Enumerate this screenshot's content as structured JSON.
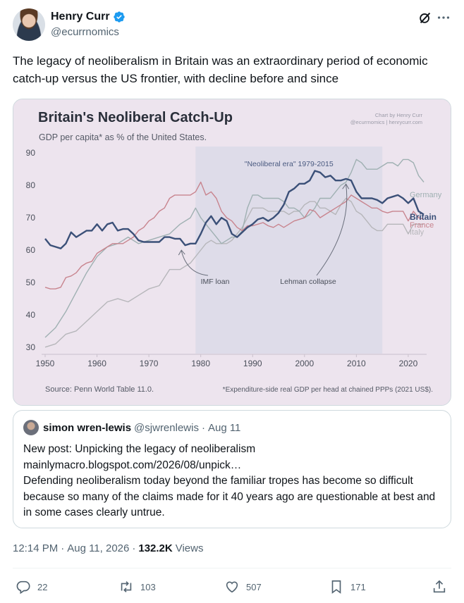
{
  "author": {
    "display_name": "Henry Curr",
    "handle": "@ecurrnomics"
  },
  "icons": {
    "verified": "verified-badge-icon",
    "grok": "grok-icon",
    "more": "more-icon",
    "reply": "reply-icon",
    "retweet": "retweet-icon",
    "like": "like-icon",
    "bookmark": "bookmark-icon",
    "share": "share-icon"
  },
  "colors": {
    "verified": "#1d9bf0",
    "britain": "#3b5078",
    "france": "#c8848e",
    "italy": "#b6b6ba",
    "germany": "#9fb0b2",
    "era_shade": "#dadbe8",
    "chart_bg": "#ede4ee"
  },
  "tweet": {
    "text": "The legacy of neoliberalism in Britain was an extraordinary period of economic catch-up versus the US frontier, with decline before and since"
  },
  "chart_data": {
    "type": "line",
    "title": "Britain's Neoliberal Catch-Up",
    "subtitle": "GDP per capita* as % of the United States.",
    "credit_line1": "Chart by Henry Curr",
    "credit_line2": "@ecurrnomics  |  henrycurr.com",
    "source": "Source: Penn World Table 11.0.",
    "footnote": "*Expenditure-side real GDP per head at chained PPPs (2021 US$).",
    "xlabel": "",
    "ylabel": "",
    "xlim": [
      1950,
      2023
    ],
    "ylim": [
      28,
      92
    ],
    "x_ticks": [
      1950,
      1960,
      1970,
      1980,
      1990,
      2000,
      2010,
      2020
    ],
    "y_ticks": [
      30,
      40,
      50,
      60,
      70,
      80,
      90
    ],
    "grid": false,
    "shaded_region": {
      "label": "\"Neoliberal era\" 1979-2015",
      "start": 1979,
      "end": 2015
    },
    "annotations": [
      {
        "text": "IMF loan",
        "x": 1976,
        "y": 61.5
      },
      {
        "text": "Lehman collapse",
        "x": 2008,
        "y": 81.5
      }
    ],
    "series": [
      {
        "name": "Germany",
        "data": [
          [
            1950,
            33
          ],
          [
            1952,
            36
          ],
          [
            1954,
            41
          ],
          [
            1956,
            47
          ],
          [
            1958,
            53
          ],
          [
            1960,
            58
          ],
          [
            1962,
            61
          ],
          [
            1964,
            62
          ],
          [
            1966,
            64
          ],
          [
            1968,
            62
          ],
          [
            1970,
            63
          ],
          [
            1972,
            64
          ],
          [
            1974,
            65
          ],
          [
            1976,
            68
          ],
          [
            1978,
            70
          ],
          [
            1979,
            73
          ],
          [
            1980,
            70
          ],
          [
            1981,
            68
          ],
          [
            1982,
            66
          ],
          [
            1983,
            64
          ],
          [
            1984,
            62
          ],
          [
            1985,
            63
          ],
          [
            1986,
            64
          ],
          [
            1987,
            64
          ],
          [
            1988,
            66
          ],
          [
            1989,
            73
          ],
          [
            1990,
            77
          ],
          [
            1991,
            77
          ],
          [
            1992,
            76
          ],
          [
            1993,
            76
          ],
          [
            1994,
            76
          ],
          [
            1995,
            76
          ],
          [
            1996,
            75
          ],
          [
            1997,
            73
          ],
          [
            1998,
            73
          ],
          [
            1999,
            72
          ],
          [
            2000,
            70
          ],
          [
            2001,
            71
          ],
          [
            2002,
            73
          ],
          [
            2003,
            76
          ],
          [
            2004,
            76
          ],
          [
            2005,
            76
          ],
          [
            2006,
            78
          ],
          [
            2007,
            80
          ],
          [
            2008,
            81
          ],
          [
            2009,
            84
          ],
          [
            2010,
            88
          ],
          [
            2011,
            87
          ],
          [
            2012,
            85
          ],
          [
            2013,
            85
          ],
          [
            2014,
            85
          ],
          [
            2015,
            86
          ],
          [
            2016,
            87
          ],
          [
            2017,
            87
          ],
          [
            2018,
            86
          ],
          [
            2019,
            88
          ],
          [
            2020,
            88
          ],
          [
            2021,
            87
          ],
          [
            2022,
            83
          ],
          [
            2023,
            81
          ]
        ]
      },
      {
        "name": "Britain",
        "data": [
          [
            1950,
            63.5
          ],
          [
            1951,
            61.5
          ],
          [
            1952,
            61
          ],
          [
            1953,
            60.5
          ],
          [
            1954,
            62
          ],
          [
            1955,
            65.5
          ],
          [
            1956,
            64
          ],
          [
            1957,
            65
          ],
          [
            1958,
            66
          ],
          [
            1959,
            66
          ],
          [
            1960,
            68
          ],
          [
            1961,
            66
          ],
          [
            1962,
            68
          ],
          [
            1963,
            68.5
          ],
          [
            1964,
            66
          ],
          [
            1965,
            66.5
          ],
          [
            1966,
            66.5
          ],
          [
            1967,
            65
          ],
          [
            1968,
            63
          ],
          [
            1969,
            62.5
          ],
          [
            1970,
            62.5
          ],
          [
            1971,
            62.5
          ],
          [
            1972,
            62.5
          ],
          [
            1973,
            64
          ],
          [
            1974,
            64
          ],
          [
            1975,
            63.5
          ],
          [
            1976,
            63.5
          ],
          [
            1977,
            61.5
          ],
          [
            1978,
            62
          ],
          [
            1979,
            62
          ],
          [
            1980,
            65
          ],
          [
            1981,
            68.5
          ],
          [
            1982,
            70.5
          ],
          [
            1983,
            68
          ],
          [
            1984,
            70
          ],
          [
            1985,
            69
          ],
          [
            1986,
            65
          ],
          [
            1987,
            64
          ],
          [
            1988,
            65.5
          ],
          [
            1989,
            67
          ],
          [
            1990,
            68
          ],
          [
            1991,
            69.5
          ],
          [
            1992,
            70
          ],
          [
            1993,
            69
          ],
          [
            1994,
            70
          ],
          [
            1995,
            71.5
          ],
          [
            1996,
            74
          ],
          [
            1997,
            78
          ],
          [
            1998,
            79
          ],
          [
            1999,
            80.5
          ],
          [
            2000,
            80.5
          ],
          [
            2001,
            81.5
          ],
          [
            2002,
            84.5
          ],
          [
            2003,
            84
          ],
          [
            2004,
            82.5
          ],
          [
            2005,
            83
          ],
          [
            2006,
            81.5
          ],
          [
            2007,
            81.5
          ],
          [
            2008,
            82
          ],
          [
            2009,
            81.5
          ],
          [
            2010,
            78
          ],
          [
            2011,
            76
          ],
          [
            2012,
            76
          ],
          [
            2013,
            76
          ],
          [
            2014,
            75.5
          ],
          [
            2015,
            74.5
          ],
          [
            2016,
            76
          ],
          [
            2017,
            76.5
          ],
          [
            2018,
            77
          ],
          [
            2019,
            76
          ],
          [
            2020,
            74.5
          ],
          [
            2021,
            76
          ],
          [
            2022,
            72
          ],
          [
            2023,
            71
          ]
        ]
      },
      {
        "name": "France",
        "data": [
          [
            1950,
            48.5
          ],
          [
            1951,
            48
          ],
          [
            1952,
            48
          ],
          [
            1953,
            48.5
          ],
          [
            1954,
            51.5
          ],
          [
            1955,
            52
          ],
          [
            1956,
            53
          ],
          [
            1957,
            55
          ],
          [
            1958,
            56
          ],
          [
            1959,
            56.5
          ],
          [
            1960,
            59
          ],
          [
            1961,
            60
          ],
          [
            1962,
            61
          ],
          [
            1963,
            62
          ],
          [
            1964,
            62
          ],
          [
            1965,
            62
          ],
          [
            1966,
            63
          ],
          [
            1967,
            64
          ],
          [
            1968,
            66
          ],
          [
            1969,
            67
          ],
          [
            1970,
            69
          ],
          [
            1971,
            70
          ],
          [
            1972,
            72
          ],
          [
            1973,
            73
          ],
          [
            1974,
            76
          ],
          [
            1975,
            77
          ],
          [
            1976,
            77
          ],
          [
            1977,
            77
          ],
          [
            1978,
            77
          ],
          [
            1979,
            78
          ],
          [
            1980,
            81
          ],
          [
            1981,
            77
          ],
          [
            1982,
            78
          ],
          [
            1983,
            76
          ],
          [
            1984,
            72
          ],
          [
            1985,
            70
          ],
          [
            1986,
            69
          ],
          [
            1987,
            67
          ],
          [
            1988,
            66
          ],
          [
            1989,
            67.5
          ],
          [
            1990,
            67.5
          ],
          [
            1991,
            68
          ],
          [
            1992,
            68.5
          ],
          [
            1993,
            67.5
          ],
          [
            1994,
            67
          ],
          [
            1995,
            68
          ],
          [
            1996,
            67
          ],
          [
            1997,
            68
          ],
          [
            1998,
            69
          ],
          [
            1999,
            69.5
          ],
          [
            2000,
            70
          ],
          [
            2001,
            72.5
          ],
          [
            2002,
            72
          ],
          [
            2003,
            70
          ],
          [
            2004,
            71
          ],
          [
            2005,
            72
          ],
          [
            2006,
            73
          ],
          [
            2007,
            74
          ],
          [
            2008,
            75
          ],
          [
            2009,
            77
          ],
          [
            2010,
            76
          ],
          [
            2011,
            75
          ],
          [
            2012,
            74
          ],
          [
            2013,
            73
          ],
          [
            2014,
            73
          ],
          [
            2015,
            72
          ],
          [
            2016,
            71.5
          ],
          [
            2017,
            72
          ],
          [
            2018,
            72
          ],
          [
            2019,
            72
          ],
          [
            2020,
            69
          ],
          [
            2021,
            72
          ],
          [
            2022,
            70
          ],
          [
            2023,
            69.5
          ]
        ]
      },
      {
        "name": "Italy",
        "data": [
          [
            1950,
            30
          ],
          [
            1952,
            31
          ],
          [
            1954,
            34
          ],
          [
            1956,
            35
          ],
          [
            1958,
            38
          ],
          [
            1960,
            41
          ],
          [
            1962,
            44
          ],
          [
            1964,
            45
          ],
          [
            1966,
            44
          ],
          [
            1968,
            46
          ],
          [
            1970,
            48
          ],
          [
            1972,
            49
          ],
          [
            1974,
            54
          ],
          [
            1976,
            54
          ],
          [
            1978,
            56
          ],
          [
            1980,
            60
          ],
          [
            1981,
            62
          ],
          [
            1982,
            63
          ],
          [
            1983,
            62
          ],
          [
            1984,
            62
          ],
          [
            1985,
            62
          ],
          [
            1986,
            63
          ],
          [
            1987,
            65
          ],
          [
            1988,
            67
          ],
          [
            1989,
            70
          ],
          [
            1990,
            73
          ],
          [
            1991,
            73
          ],
          [
            1992,
            73
          ],
          [
            1993,
            72
          ],
          [
            1994,
            72
          ],
          [
            1995,
            72
          ],
          [
            1996,
            72
          ],
          [
            1997,
            71
          ],
          [
            1998,
            72
          ],
          [
            1999,
            72
          ],
          [
            2000,
            74
          ],
          [
            2001,
            75
          ],
          [
            2002,
            75
          ],
          [
            2003,
            73
          ],
          [
            2004,
            73
          ],
          [
            2005,
            72
          ],
          [
            2006,
            71
          ],
          [
            2007,
            74
          ],
          [
            2008,
            76
          ],
          [
            2009,
            75
          ],
          [
            2010,
            72
          ],
          [
            2011,
            71
          ],
          [
            2012,
            69
          ],
          [
            2013,
            67
          ],
          [
            2014,
            66
          ],
          [
            2015,
            66
          ],
          [
            2016,
            68
          ],
          [
            2017,
            68
          ],
          [
            2018,
            68
          ],
          [
            2019,
            68
          ],
          [
            2020,
            65
          ],
          [
            2021,
            68
          ],
          [
            2022,
            68
          ],
          [
            2023,
            68
          ]
        ]
      }
    ]
  },
  "quote_tweet": {
    "display_name": "simon wren-lewis",
    "handle": "@sjwrenlewis",
    "separator": "·",
    "date": "Aug 11",
    "line1": "New post: Unpicking the legacy of neoliberalism",
    "link": "mainlymacro.blogspot.com/2026/08/unpick…",
    "body": "Defending neoliberalism today beyond the familiar tropes has become so difficult because so many of the claims made for it 40 years ago are questionable at best and in some cases clearly untrue."
  },
  "meta": {
    "time": "12:14 PM",
    "separator": "·",
    "date": "Aug 11, 2026",
    "separator2": "·",
    "views_count": "132.2K",
    "views_label": "Views"
  },
  "actions": {
    "replies": "22",
    "retweets": "103",
    "likes": "507",
    "bookmarks": "171"
  }
}
